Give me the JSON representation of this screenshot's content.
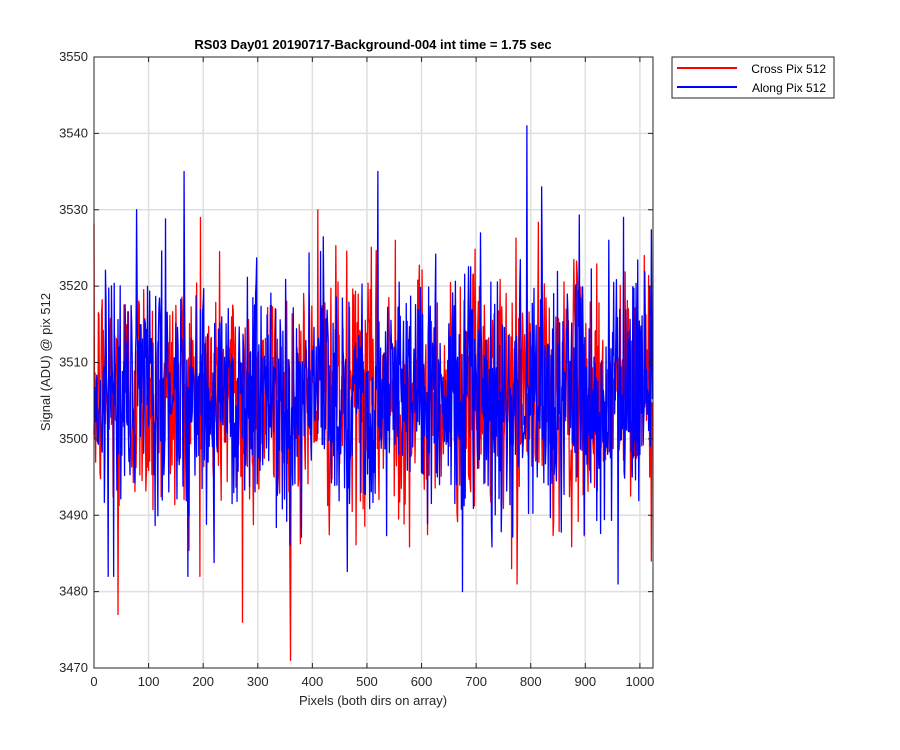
{
  "chart_data": {
    "type": "line",
    "title": "RS03 Day01 20190717-Background-004 int time = 1.75 sec",
    "xlabel": "Pixels (both dirs on array)",
    "ylabel": "Signal (ADU) @ pix 512",
    "xlim": [
      0,
      1024
    ],
    "ylim": [
      3470,
      3550
    ],
    "xticks": [
      0,
      100,
      200,
      300,
      400,
      500,
      600,
      700,
      800,
      900,
      1000
    ],
    "yticks": [
      3470,
      3480,
      3490,
      3500,
      3510,
      3520,
      3530,
      3540,
      3550
    ],
    "grid": true,
    "legend_position": "outside-top-right",
    "series_generation": {
      "n_points": 1024,
      "mean": 3506,
      "std": 8
    },
    "series": [
      {
        "name": "Cross Pix 512",
        "color": "#ff0000",
        "key_points": [
          [
            44,
            3477
          ],
          [
            195,
            3529
          ],
          [
            272,
            3476
          ],
          [
            360,
            3471
          ],
          [
            410,
            3530
          ],
          [
            552,
            3526
          ],
          [
            775,
            3481
          ],
          [
            1008,
            3524
          ]
        ]
      },
      {
        "name": "Along Pix 512",
        "color": "#0000ff",
        "key_points": [
          [
            165,
            3535
          ],
          [
            520,
            3535
          ],
          [
            675,
            3480
          ],
          [
            793,
            3541
          ],
          [
            820,
            3533
          ],
          [
            960,
            3481
          ],
          [
            970,
            3529
          ]
        ]
      }
    ]
  }
}
